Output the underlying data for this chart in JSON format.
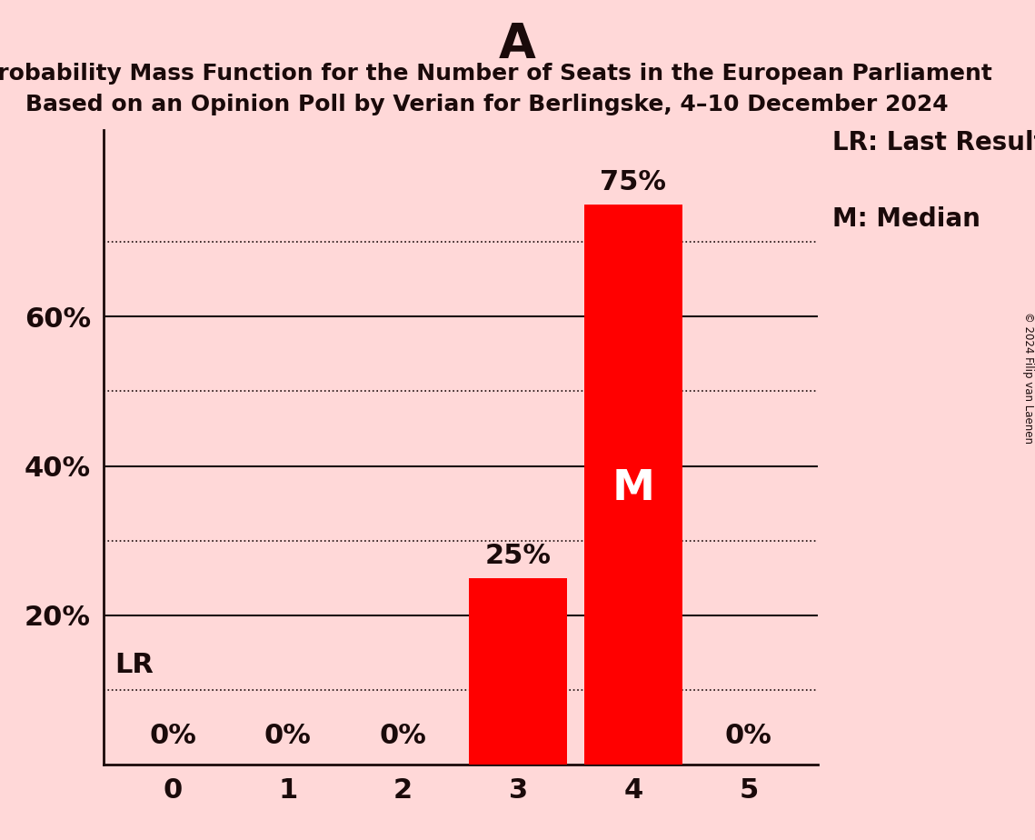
{
  "title": "A",
  "subtitle_line1": "Probability Mass Function for the Number of Seats in the European Parliament",
  "subtitle_line2": "Based on an Opinion Poll by Verian for Berlingske, 4–10 December 2024",
  "categories": [
    0,
    1,
    2,
    3,
    4,
    5
  ],
  "values": [
    0,
    0,
    0,
    25,
    75,
    0
  ],
  "bar_color": "#FF0000",
  "background_color": "#FFD8D8",
  "text_color": "#1A0A0A",
  "dotted_lines": [
    10,
    30,
    50,
    70
  ],
  "solid_lines": [
    20,
    40,
    60
  ],
  "lr_value": 10,
  "median_bar": 4,
  "legend_lr": "LR: Last Result",
  "legend_m": "M: Median",
  "copyright": "© 2024 Filip van Laenen",
  "title_fontsize": 38,
  "subtitle_fontsize": 18,
  "tick_fontsize": 22,
  "label_fontsize": 22,
  "legend_fontsize": 20,
  "median_fontsize": 34
}
